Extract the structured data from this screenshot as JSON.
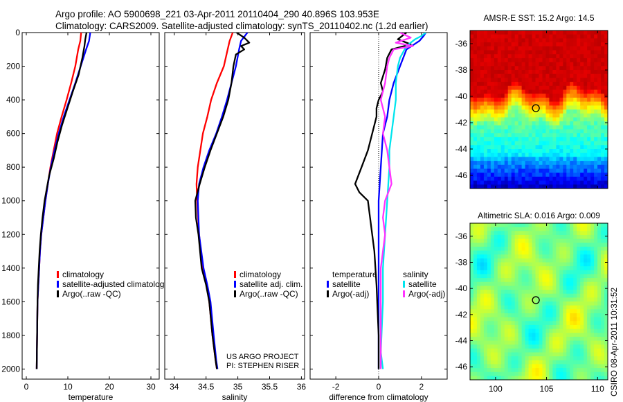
{
  "title_line1": "Argo profile: AO 5900698_221 03-Apr-2011 20110404_290 40.896S 103.953E",
  "title_line2": "Climatology: CARS2009. Satellite-adjusted climatology: synTS_20110402.nc (1.2d earlier)",
  "side_label": "CSIRO 08-Apr-2011 10:31:52",
  "project_line1": "US ARGO PROJECT",
  "project_line2": "PI: STEPHEN RISER",
  "colors": {
    "clim": "#ff0000",
    "sat": "#0000ff",
    "argo": "#000000",
    "sal_sat": "#00e5ee",
    "sal_argo": "#ff33ff"
  },
  "chart_data": [
    {
      "type": "line",
      "name": "temperature-profile",
      "xlabel": "temperature",
      "ylabel": "",
      "xlim": [
        -1,
        32
      ],
      "ylim": [
        2060,
        0
      ],
      "y_reversed": true,
      "xticks": [
        0,
        10,
        20,
        30
      ],
      "yticks": [
        0,
        200,
        400,
        600,
        800,
        1000,
        1200,
        1400,
        1600,
        1800,
        2000
      ],
      "legend": {
        "position": "lower-right",
        "entries": [
          "climatology",
          "satellite-adjusted climatology",
          "Argo(..raw -QC)"
        ]
      },
      "series": [
        {
          "name": "climatology",
          "color": "clim",
          "x": [
            13.2,
            13.0,
            12.5,
            11.8,
            10.8,
            9.7,
            8.5,
            7.4,
            6.6,
            5.8,
            5.2,
            4.6,
            4.1,
            3.6,
            3.3,
            3.1,
            2.9,
            2.7,
            2.6,
            2.5
          ],
          "y": [
            0,
            50,
            100,
            200,
            300,
            400,
            500,
            600,
            700,
            800,
            900,
            1000,
            1100,
            1200,
            1300,
            1400,
            1500,
            1600,
            1800,
            2000
          ]
        },
        {
          "name": "satellite-adjusted climatology",
          "color": "sat",
          "x": [
            15.4,
            15.1,
            14.4,
            13.1,
            11.8,
            10.4,
            9.0,
            7.8,
            6.8,
            5.9,
            5.2,
            4.6,
            4.1,
            3.6,
            3.3,
            3.1,
            2.9,
            2.7,
            2.6,
            2.5
          ],
          "y": [
            0,
            50,
            100,
            200,
            300,
            400,
            500,
            600,
            700,
            800,
            900,
            1000,
            1100,
            1200,
            1300,
            1400,
            1500,
            1600,
            1800,
            2000
          ]
        },
        {
          "name": "Argo(..raw -QC)",
          "color": "argo",
          "x": [
            14.5,
            14.2,
            14.0,
            13.5,
            12.6,
            11.2,
            9.9,
            8.6,
            7.5,
            6.6,
            5.5,
            4.4,
            3.9,
            3.5,
            3.2,
            3.0,
            2.8,
            2.7,
            2.6,
            2.5
          ],
          "y": [
            0,
            40,
            80,
            150,
            250,
            350,
            450,
            550,
            650,
            750,
            850,
            1000,
            1100,
            1200,
            1300,
            1400,
            1500,
            1600,
            1800,
            2000
          ]
        }
      ]
    },
    {
      "type": "line",
      "name": "salinity-profile",
      "xlabel": "salinity",
      "ylabel": "",
      "xlim": [
        33.85,
        36.05
      ],
      "ylim": [
        2060,
        0
      ],
      "y_reversed": true,
      "xticks": [
        34,
        34.5,
        35,
        35.5,
        36
      ],
      "xtick_labels": [
        "34",
        "34.5",
        "35",
        "35.5",
        "36"
      ],
      "legend": {
        "position": "lower-right",
        "entries": [
          "climatology",
          "satellite adj. clim.",
          "Argo(..raw -QC)"
        ]
      },
      "series": [
        {
          "name": "climatology",
          "color": "clim",
          "x": [
            34.92,
            34.87,
            34.84,
            34.78,
            34.67,
            34.58,
            34.52,
            34.45,
            34.41,
            34.37,
            34.35,
            34.36,
            34.39,
            34.45,
            34.51,
            34.55,
            34.6,
            34.65,
            34.67
          ],
          "y": [
            0,
            50,
            100,
            200,
            300,
            400,
            500,
            600,
            700,
            800,
            900,
            1000,
            1200,
            1400,
            1500,
            1600,
            1800,
            1950,
            2000
          ]
        },
        {
          "name": "satellite adj. clim.",
          "color": "sat",
          "x": [
            35.15,
            35.05,
            35.02,
            34.97,
            34.9,
            34.83,
            34.75,
            34.66,
            34.55,
            34.46,
            34.39,
            34.37,
            34.39,
            34.46,
            34.52,
            34.57,
            34.62,
            34.66,
            34.68
          ],
          "y": [
            0,
            50,
            100,
            200,
            300,
            400,
            500,
            600,
            700,
            800,
            900,
            1000,
            1200,
            1400,
            1500,
            1600,
            1800,
            1950,
            2000
          ]
        },
        {
          "name": "Argo(..raw -QC)",
          "color": "argo",
          "x": [
            34.98,
            35.1,
            35.18,
            35.05,
            35.1,
            34.97,
            34.93,
            34.9,
            34.85,
            34.77,
            34.67,
            34.57,
            34.48,
            34.4,
            34.33,
            34.34,
            34.38,
            34.43,
            34.5,
            34.55,
            34.6,
            34.65,
            34.67
          ],
          "y": [
            0,
            30,
            60,
            80,
            100,
            130,
            200,
            300,
            400,
            500,
            600,
            700,
            800,
            900,
            1000,
            1100,
            1200,
            1400,
            1500,
            1600,
            1800,
            1950,
            2000
          ]
        }
      ]
    },
    {
      "type": "line",
      "name": "difference-profile",
      "xlabel": "difference from climatology",
      "ylabel": "",
      "xlim": [
        -3.2,
        3.2
      ],
      "ylim": [
        2060,
        0
      ],
      "y_reversed": true,
      "xticks": [
        -2,
        0,
        2
      ],
      "legend": {
        "position": "lower-right",
        "groups": [
          {
            "title": "temperature",
            "entries": [
              "satellite",
              "Argo(-adj)"
            ]
          },
          {
            "title": "salinity",
            "entries": [
              "satellite",
              "Argo(-adj)"
            ]
          }
        ]
      },
      "series": [
        {
          "name": "temperature satellite",
          "color": "sat",
          "x": [
            2.2,
            2.1,
            1.9,
            1.3,
            1.0,
            0.7,
            0.5,
            0.4,
            0.2,
            0.1,
            0.0,
            0.0,
            0.0,
            0.0,
            0.0
          ],
          "y": [
            0,
            20,
            50,
            100,
            200,
            300,
            400,
            500,
            600,
            800,
            1000,
            1200,
            1400,
            1600,
            2000
          ]
        },
        {
          "name": "temperature Argo(-adj)",
          "color": "argo",
          "x": [
            1.3,
            0.9,
            1.5,
            0.6,
            0.4,
            0.3,
            0.1,
            0.2,
            0.0,
            -0.1,
            -0.1,
            -0.3,
            -0.5,
            -0.8,
            -1.1,
            -0.9,
            -0.5,
            -0.4,
            -0.3,
            -0.2,
            -0.1,
            0.0,
            0.0
          ],
          "y": [
            0,
            40,
            70,
            100,
            150,
            220,
            300,
            350,
            400,
            450,
            500,
            600,
            700,
            800,
            900,
            950,
            1000,
            1100,
            1200,
            1300,
            1500,
            1800,
            2000
          ]
        },
        {
          "name": "salinity satellite",
          "color": "sal_sat",
          "x": [
            2.2,
            2.0,
            1.7,
            1.3,
            1.0,
            0.9,
            0.8,
            0.8,
            0.7,
            0.6,
            0.5,
            0.5,
            0.4,
            0.3,
            0.2,
            0.2,
            0.1,
            0.2
          ],
          "y": [
            0,
            20,
            40,
            80,
            150,
            200,
            300,
            400,
            500,
            600,
            700,
            800,
            1000,
            1200,
            1400,
            1600,
            1900,
            2000
          ]
        },
        {
          "name": "salinity Argo(-adj)",
          "color": "sal_argo",
          "x": [
            1.0,
            1.5,
            0.8,
            1.6,
            0.7,
            0.5,
            0.4,
            0.3,
            0.1,
            0.3,
            0.2,
            0.4,
            0.5,
            0.6,
            0.3,
            0.2,
            0.3,
            0.2,
            0.1,
            0.1,
            0.1,
            0.1
          ],
          "y": [
            0,
            30,
            60,
            80,
            100,
            150,
            200,
            300,
            400,
            500,
            600,
            700,
            800,
            900,
            1000,
            1100,
            1200,
            1300,
            1400,
            1600,
            1800,
            2000
          ]
        }
      ]
    },
    {
      "type": "heatmap",
      "name": "sst-map",
      "title": "AMSR-E SST: 15.2 Argo: 14.5",
      "xlim": [
        97.5,
        111
      ],
      "ylim": [
        -47,
        -35
      ],
      "xticks": [
        100,
        105,
        110
      ],
      "yticks": [
        -36,
        -38,
        -40,
        -42,
        -44,
        -46
      ],
      "argo_position": [
        103.953,
        -40.896
      ]
    },
    {
      "type": "heatmap",
      "name": "sla-map",
      "title": "Altimetric SLA: 0.016 Argo: 0.009",
      "xlim": [
        97.5,
        111
      ],
      "ylim": [
        -47,
        -35
      ],
      "xticks": [
        100,
        105,
        110
      ],
      "xtick_labels": [
        "100",
        "105",
        "110"
      ],
      "yticks": [
        -36,
        -38,
        -40,
        -42,
        -44,
        -46
      ],
      "argo_position": [
        103.953,
        -40.896
      ]
    }
  ]
}
